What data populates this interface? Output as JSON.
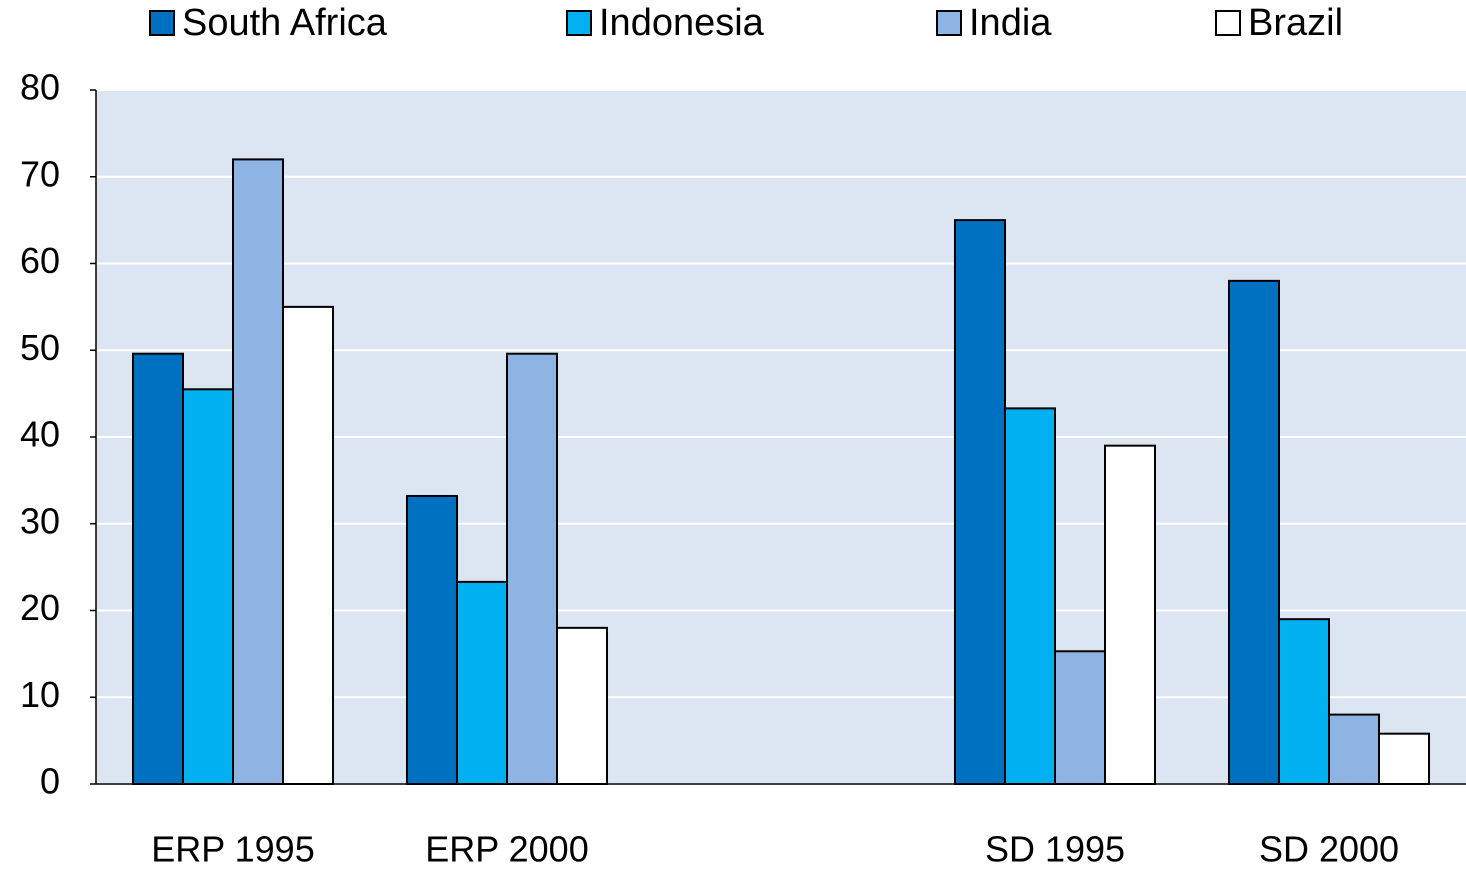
{
  "chart_data": {
    "type": "bar",
    "categories": [
      "ERP 1995",
      "ERP 2000",
      null,
      "SD 1995",
      "SD 2000"
    ],
    "series": [
      {
        "name": "South Africa",
        "color": "#0070c0",
        "values": [
          49.6,
          33.2,
          null,
          65,
          58
        ]
      },
      {
        "name": "Indonesia",
        "color": "#00b0f0",
        "values": [
          45.5,
          23.3,
          null,
          43.3,
          19
        ]
      },
      {
        "name": "India",
        "color": "#8db4e2",
        "values": [
          72,
          49.6,
          null,
          15.3,
          8
        ]
      },
      {
        "name": "Brazil",
        "color": "#ffffff",
        "values": [
          55,
          18,
          null,
          39,
          5.8
        ]
      }
    ],
    "ylim": [
      0,
      80
    ],
    "yticks": [
      0,
      10,
      20,
      30,
      40,
      50,
      60,
      70,
      80
    ],
    "grid": true,
    "legend": "top"
  }
}
